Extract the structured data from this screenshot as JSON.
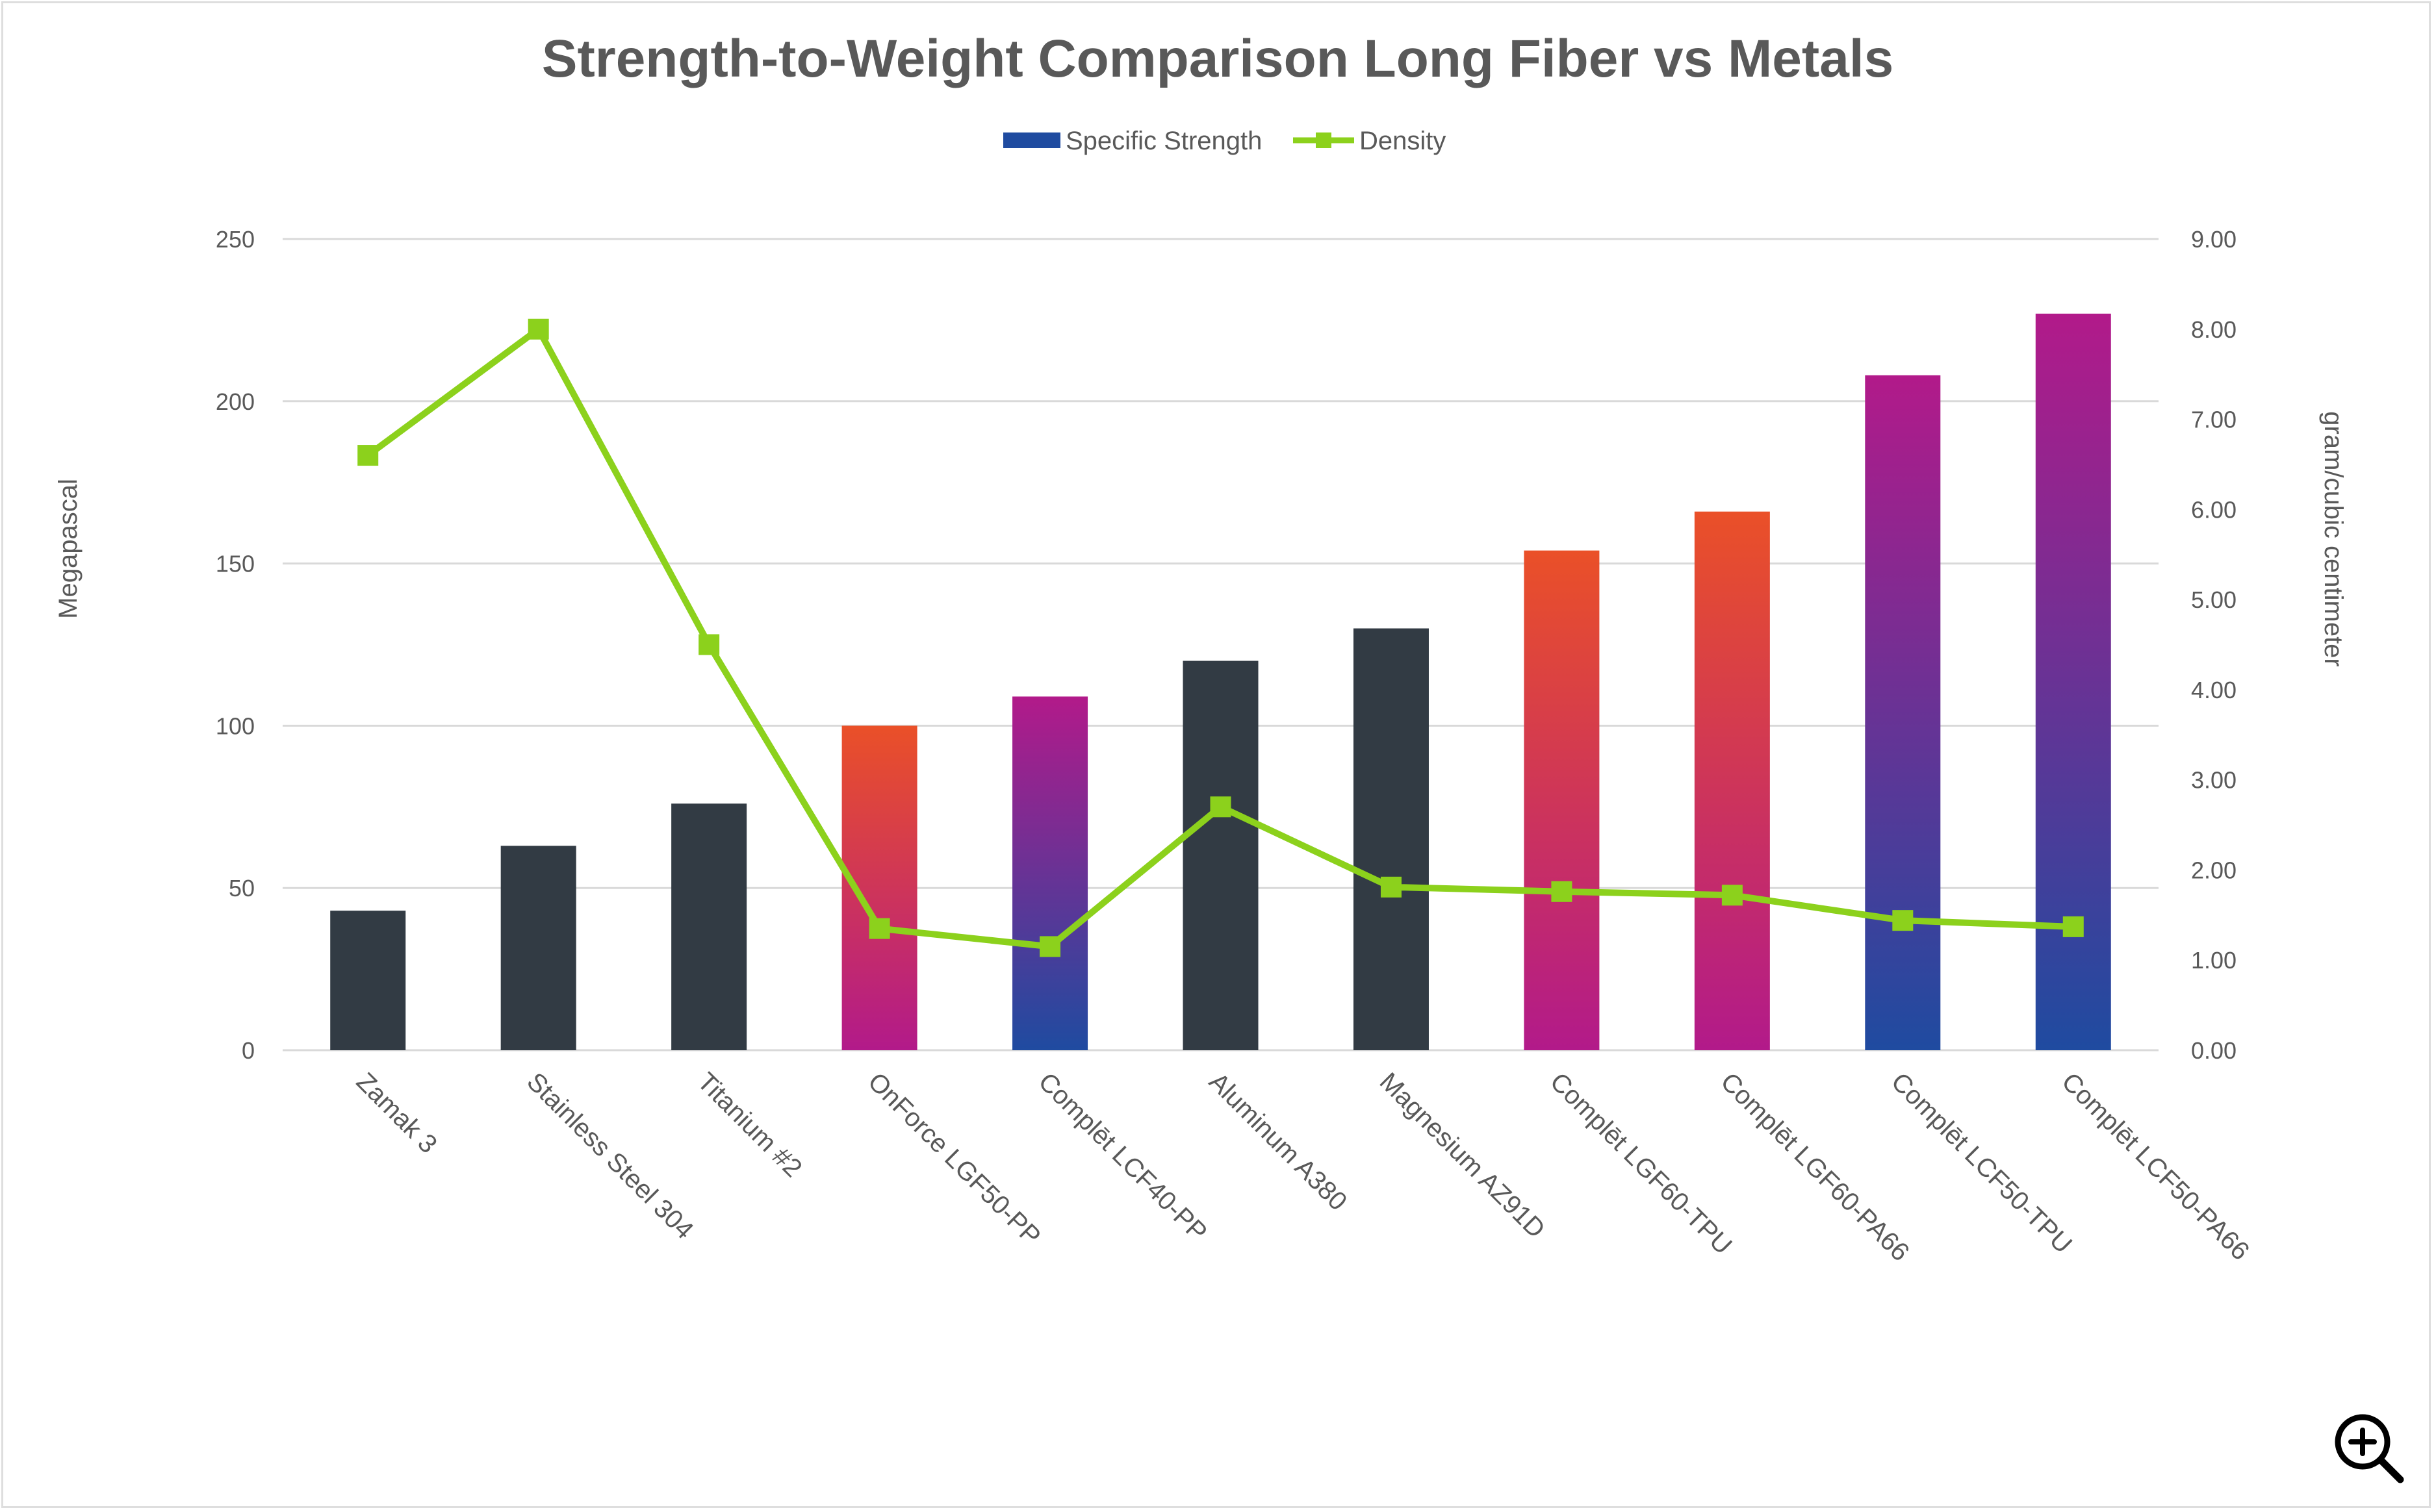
{
  "chart_data": {
    "type": "bar",
    "title": "Strength-to-Weight Comparison Long Fiber vs Metals",
    "categories": [
      "Zamak 3",
      "Stainless Steel 304",
      "Titanium #2",
      "OnForce LGF50-PP",
      "Complēt LCF40-PP",
      "Aluminum A380",
      "Magnesium AZ91D",
      "Complēt LGF60-TPU",
      "Complēt LGF60-PA66",
      "Complēt LCF50-TPU",
      "Complēt LCF50-PA66"
    ],
    "series": [
      {
        "name": "Specific Strength",
        "type": "bar",
        "axis": "left",
        "values": [
          43,
          63,
          76,
          100,
          109,
          120,
          130,
          154,
          166,
          208,
          227
        ],
        "fills": [
          "dark",
          "dark",
          "dark",
          "orange-magenta",
          "magenta-blue",
          "dark",
          "dark",
          "orange-magenta",
          "orange-magenta",
          "magenta-blue",
          "magenta-blue"
        ]
      },
      {
        "name": "Density",
        "type": "line",
        "axis": "right",
        "values": [
          6.6,
          8.0,
          4.5,
          1.35,
          1.15,
          2.7,
          1.81,
          1.76,
          1.72,
          1.44,
          1.37
        ]
      }
    ],
    "ylabel": "Megapascal",
    "y2label": "gram/cubic centimeter",
    "ylim": [
      0,
      250
    ],
    "y2lim": [
      0,
      9
    ],
    "yticks": [
      "0",
      "50",
      "100",
      "150",
      "200",
      "250"
    ],
    "y2ticks": [
      "0.00",
      "1.00",
      "2.00",
      "3.00",
      "4.00",
      "5.00",
      "6.00",
      "7.00",
      "8.00",
      "9.00"
    ],
    "legend_position": "top",
    "grid": true,
    "colors": {
      "dark": "#323b44",
      "orange": "#ea5028",
      "magenta": "#b21a8a",
      "blue": "#1f4ba0",
      "line": "#8cd11c",
      "legend_bar": "#1f4ba0",
      "grid": "#d9d9d9"
    }
  },
  "toolbar": {
    "zoom_icon": "zoom-in-icon"
  }
}
